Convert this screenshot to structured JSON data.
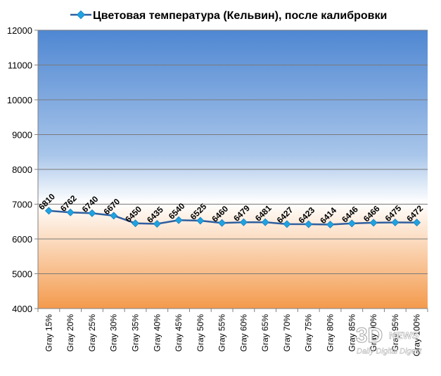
{
  "chart_data": {
    "type": "line",
    "title": "",
    "xlabel": "",
    "ylabel": "",
    "ylim": [
      4000,
      12000
    ],
    "ystep": 1000,
    "grid": true,
    "legend_position": "top",
    "categories": [
      "Gray 15%",
      "Gray 20%",
      "Gray 25%",
      "Gray 30%",
      "Gray 35%",
      "Gray 40%",
      "Gray 45%",
      "Gray 50%",
      "Gray 55%",
      "Gray 60%",
      "Gray 65%",
      "Gray 70%",
      "Gray 75%",
      "Gray 80%",
      "Gray 85%",
      "Gray 90%",
      "Gray 95%",
      "Gray 100%"
    ],
    "series": [
      {
        "name": "Цветовая температура (Кельвин), после калибровки",
        "color": "#2f5e9e",
        "marker_color": "#1fa3e0",
        "values": [
          6810,
          6762,
          6740,
          6670,
          6450,
          6435,
          6540,
          6525,
          6460,
          6479,
          6481,
          6427,
          6423,
          6414,
          6446,
          6466,
          6475,
          6472
        ]
      }
    ],
    "background_gradient": [
      "#4f87d2",
      "#a9c6ea",
      "#ffffff",
      "#f49a4c"
    ]
  },
  "watermark": {
    "main": "3D",
    "news": "NEWS",
    "sub": "Daily Digital Digest"
  }
}
